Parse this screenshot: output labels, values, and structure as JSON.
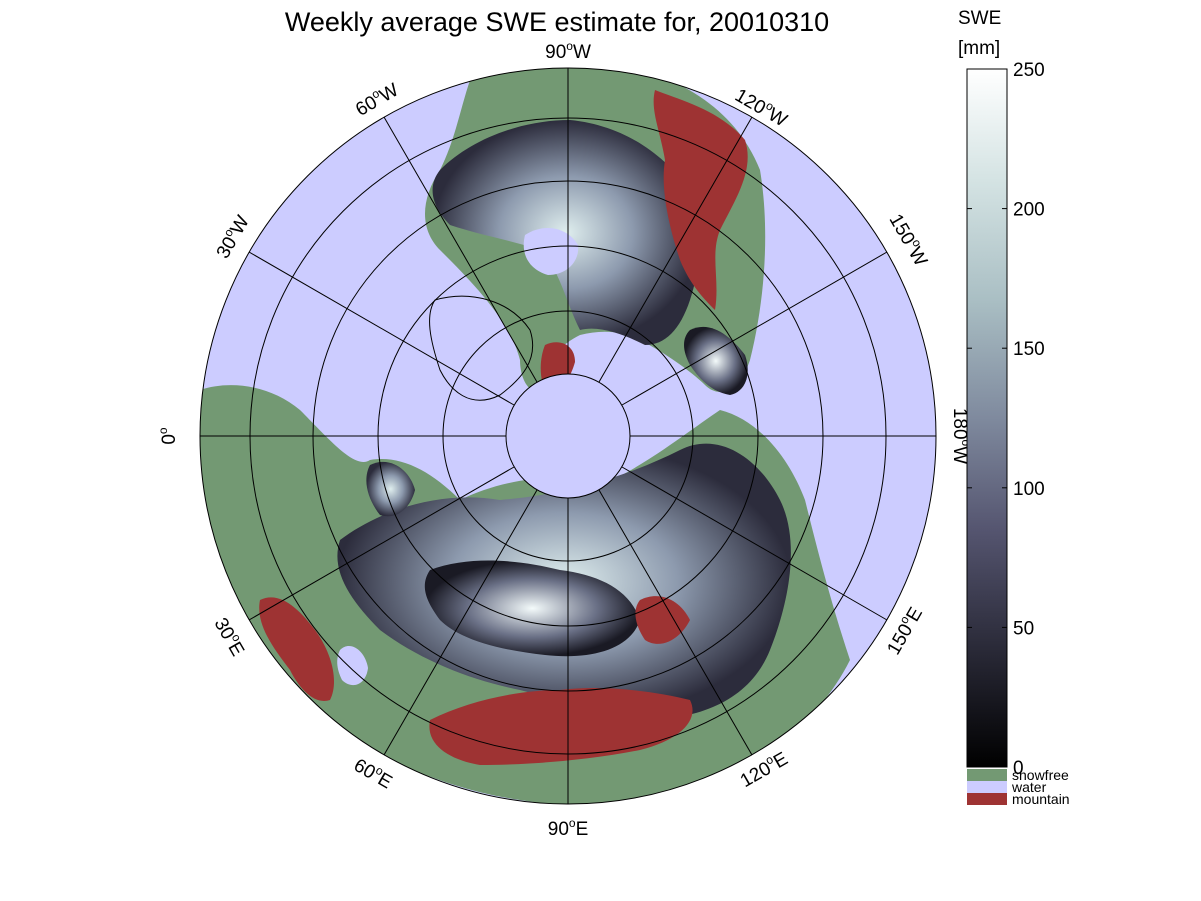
{
  "title": "Weekly average SWE estimate for, 20010310",
  "map": {
    "projection": "north polar stereographic",
    "longitude_labels": [
      {
        "deg": "90",
        "hemi": "W"
      },
      {
        "deg": "120",
        "hemi": "W"
      },
      {
        "deg": "150",
        "hemi": "W"
      },
      {
        "deg": "180",
        "hemi": "W"
      },
      {
        "deg": "150",
        "hemi": "E"
      },
      {
        "deg": "120",
        "hemi": "E"
      },
      {
        "deg": "90",
        "hemi": "E"
      },
      {
        "deg": "60",
        "hemi": "E"
      },
      {
        "deg": "30",
        "hemi": "E"
      },
      {
        "deg": "0",
        "hemi": ""
      },
      {
        "deg": "30",
        "hemi": "W"
      },
      {
        "deg": "60",
        "hemi": "W"
      }
    ],
    "colors": {
      "water": "#ccccff",
      "snowfree": "#739973",
      "mountain": "#9e3333",
      "gridline": "#000000"
    }
  },
  "colorbar": {
    "title_line1": "SWE",
    "title_line2": "[mm]",
    "ticks": [
      "0",
      "50",
      "100",
      "150",
      "200",
      "250"
    ],
    "min": 0,
    "max": 250,
    "gradient": [
      "#000000",
      "#2a2a38",
      "#555570",
      "#7f8a9e",
      "#aabfc4",
      "#d4e3e3",
      "#ffffff"
    ],
    "legend": [
      {
        "label": "snowfree",
        "color": "#739973"
      },
      {
        "label": "water",
        "color": "#ccccff"
      },
      {
        "label": "mountain",
        "color": "#9e3333"
      }
    ]
  }
}
